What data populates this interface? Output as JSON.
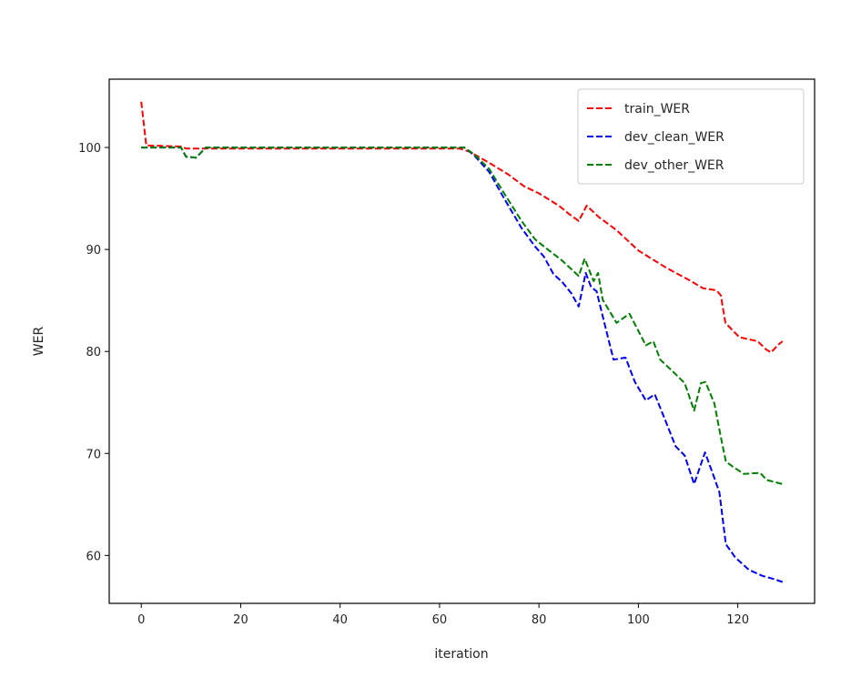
{
  "chart_data": {
    "type": "line",
    "title": "",
    "xlabel": "iteration",
    "ylabel": "WER",
    "xlim": [
      -6.45,
      135.45
    ],
    "ylim": [
      55.3,
      106.7
    ],
    "xticks": [
      0,
      20,
      40,
      60,
      80,
      100,
      120
    ],
    "yticks": [
      60,
      70,
      80,
      90,
      100
    ],
    "grid": false,
    "legend_position": "upper right",
    "linestyle": "dashed",
    "series": [
      {
        "name": "train_WER",
        "color": "#ff0000",
        "keypoints": [
          [
            0,
            104.5
          ],
          [
            1,
            100.2
          ],
          [
            8,
            100.1
          ],
          [
            9,
            99.9
          ],
          [
            64,
            99.9
          ],
          [
            66,
            99.6
          ],
          [
            70,
            98.5
          ],
          [
            74,
            97.3
          ],
          [
            77,
            96.2
          ],
          [
            80,
            95.5
          ],
          [
            84,
            94.3
          ],
          [
            86,
            93.5
          ],
          [
            88,
            92.8
          ],
          [
            89.6,
            94.3
          ],
          [
            92,
            93.2
          ],
          [
            95.6,
            91.9
          ],
          [
            100,
            89.9
          ],
          [
            105.3,
            88.3
          ],
          [
            110.2,
            87.0
          ],
          [
            113,
            86.2
          ],
          [
            115.7,
            86.0
          ],
          [
            116.6,
            85.5
          ],
          [
            117.5,
            82.8
          ],
          [
            120.3,
            81.4
          ],
          [
            124,
            81.0
          ],
          [
            125.7,
            80.2
          ],
          [
            126.7,
            79.9
          ],
          [
            128,
            80.6
          ],
          [
            129,
            81.0
          ]
        ]
      },
      {
        "name": "dev_clean_WER",
        "color": "#0000ff",
        "keypoints": [
          [
            0,
            100.0
          ],
          [
            8,
            100.0
          ],
          [
            9,
            99.1
          ],
          [
            11,
            99.0
          ],
          [
            12,
            99.5
          ],
          [
            13,
            100.0
          ],
          [
            65,
            100.0
          ],
          [
            67,
            99.2
          ],
          [
            70,
            97.6
          ],
          [
            73,
            95.0
          ],
          [
            76.5,
            92.1
          ],
          [
            79.2,
            90.3
          ],
          [
            81,
            89.3
          ],
          [
            82.9,
            87.6
          ],
          [
            84.7,
            86.8
          ],
          [
            86.5,
            85.7
          ],
          [
            88,
            84.4
          ],
          [
            89.4,
            87.7
          ],
          [
            90.5,
            86.3
          ],
          [
            91.6,
            85.9
          ],
          [
            92.7,
            83.7
          ],
          [
            95,
            79.2
          ],
          [
            97.4,
            79.4
          ],
          [
            99.3,
            77.0
          ],
          [
            101.5,
            75.2
          ],
          [
            103.3,
            75.8
          ],
          [
            105.3,
            73.4
          ],
          [
            107.5,
            70.7
          ],
          [
            109.3,
            69.8
          ],
          [
            111.2,
            67.0
          ],
          [
            113.4,
            70.1
          ],
          [
            115.2,
            67.7
          ],
          [
            116.3,
            66.2
          ],
          [
            117.6,
            61.1
          ],
          [
            119.5,
            59.8
          ],
          [
            122.2,
            58.6
          ],
          [
            124.9,
            58.0
          ],
          [
            127.1,
            57.7
          ],
          [
            129,
            57.4
          ]
        ]
      },
      {
        "name": "dev_other_WER",
        "color": "#008000",
        "keypoints": [
          [
            0,
            100.0
          ],
          [
            8,
            100.0
          ],
          [
            9,
            99.1
          ],
          [
            11,
            99.0
          ],
          [
            12,
            99.5
          ],
          [
            13,
            100.0
          ],
          [
            65,
            100.0
          ],
          [
            67,
            99.3
          ],
          [
            70,
            97.9
          ],
          [
            73,
            95.5
          ],
          [
            76.5,
            92.8
          ],
          [
            79.2,
            91.0
          ],
          [
            81,
            90.3
          ],
          [
            84.7,
            88.9
          ],
          [
            88,
            87.4
          ],
          [
            89.2,
            89.1
          ],
          [
            90.1,
            88.0
          ],
          [
            91,
            86.9
          ],
          [
            91.9,
            87.7
          ],
          [
            92.8,
            85.1
          ],
          [
            95.6,
            82.8
          ],
          [
            98.2,
            83.7
          ],
          [
            101.5,
            80.6
          ],
          [
            103,
            81.0
          ],
          [
            104.4,
            79.2
          ],
          [
            107,
            78.0
          ],
          [
            109.3,
            76.9
          ],
          [
            111.2,
            74.2
          ],
          [
            112.6,
            76.9
          ],
          [
            113.5,
            77.0
          ],
          [
            115.3,
            74.9
          ],
          [
            116.6,
            71.6
          ],
          [
            117.6,
            69.2
          ],
          [
            119,
            68.7
          ],
          [
            121.2,
            68.0
          ],
          [
            124.5,
            68.1
          ],
          [
            125.8,
            67.4
          ],
          [
            129,
            67.0
          ]
        ]
      }
    ]
  },
  "legend": {
    "items": [
      {
        "label": "train_WER",
        "color": "#ff0000"
      },
      {
        "label": "dev_clean_WER",
        "color": "#0000ff"
      },
      {
        "label": "dev_other_WER",
        "color": "#008000"
      }
    ]
  },
  "axes": {
    "xlabel": "iteration",
    "ylabel": "WER",
    "xtick_labels": [
      "0",
      "20",
      "40",
      "60",
      "80",
      "100",
      "120"
    ],
    "ytick_labels": [
      "60",
      "70",
      "80",
      "90",
      "100"
    ]
  }
}
